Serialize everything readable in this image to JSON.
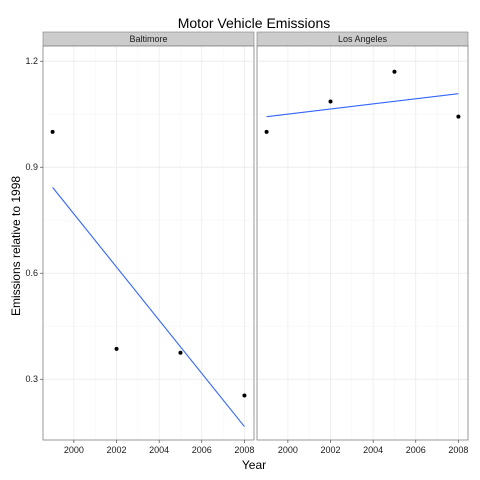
{
  "chart_data": {
    "type": "scatter",
    "title": "Motor Vehicle Emissions",
    "xlabel": "Year",
    "ylabel": "Emissions relative to 1998",
    "xlim": [
      1998.55,
      2008.45
    ],
    "ylim": [
      0.128,
      1.243
    ],
    "x_ticks": [
      2000,
      2002,
      2004,
      2006,
      2008
    ],
    "y_ticks": [
      0.3,
      0.6,
      0.9,
      1.2
    ],
    "y_tick_labels": [
      "0.3",
      "0.6",
      "0.9",
      "1.2"
    ],
    "grid": true,
    "panels": [
      {
        "name": "Baltimore",
        "points": [
          {
            "x": 1999,
            "y": 1.0
          },
          {
            "x": 2002,
            "y": 0.386
          },
          {
            "x": 2005,
            "y": 0.375
          },
          {
            "x": 2008,
            "y": 0.254
          }
        ],
        "trend": {
          "x": [
            1999,
            2008
          ],
          "y": [
            0.843,
            0.166
          ]
        }
      },
      {
        "name": "Los Angeles",
        "points": [
          {
            "x": 1999,
            "y": 1.0
          },
          {
            "x": 2002,
            "y": 1.086
          },
          {
            "x": 2005,
            "y": 1.17
          },
          {
            "x": 2008,
            "y": 1.043
          }
        ],
        "trend": {
          "x": [
            1999,
            2008
          ],
          "y": [
            1.043,
            1.108
          ]
        }
      }
    ],
    "colors": {
      "panel_bg": "#ffffff",
      "panel_border": "#7f7f7f",
      "strip_bg": "#cccccc",
      "grid_major": "#ebebeb",
      "grid_minor": "#f5f5f5",
      "point": "#000000",
      "trend": "#3366ff"
    }
  }
}
